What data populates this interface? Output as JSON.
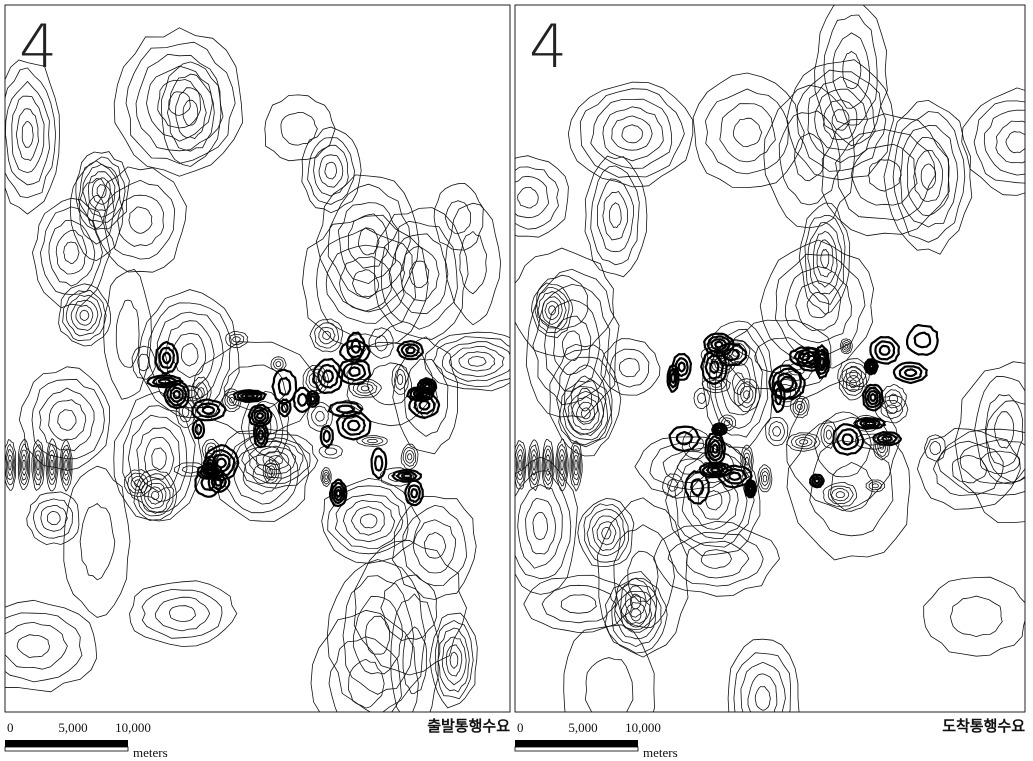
{
  "panels": [
    {
      "label": "4",
      "scale": {
        "ticks": [
          "0",
          "5,000",
          "10,000"
        ],
        "unit": "meters"
      },
      "caption": "출발통행수요"
    },
    {
      "label": "4",
      "scale": {
        "ticks": [
          "0",
          "5,000",
          "10,000"
        ],
        "unit": "meters"
      },
      "caption": "도착통행수요"
    }
  ]
}
